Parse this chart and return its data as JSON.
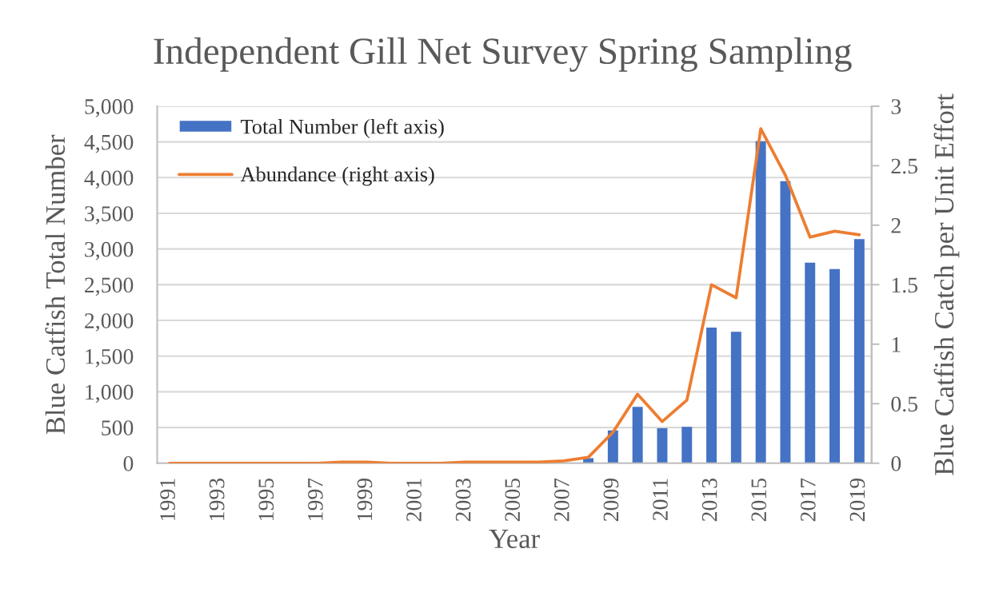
{
  "chart_data": {
    "type": "bar",
    "title": "Independent Gill Net Survey Spring Sampling",
    "xlabel": "Year",
    "ylabel": "Blue Catfish Total Number",
    "y2label": "Blue Catfish Catch per Unit Effort",
    "categories": [
      "1991",
      null,
      "1993",
      null,
      "1995",
      null,
      "1997",
      null,
      "1999",
      null,
      "2001",
      null,
      "2003",
      null,
      "2005",
      null,
      "2007",
      null,
      "2009",
      null,
      "2011",
      null,
      "2013",
      null,
      "2015",
      null,
      "2017",
      null,
      "2019"
    ],
    "series": [
      {
        "name": "Total Number (left axis)",
        "color": "#4472c4",
        "values": [
          null,
          null,
          null,
          null,
          null,
          null,
          null,
          null,
          null,
          null,
          null,
          null,
          null,
          null,
          null,
          null,
          null,
          70,
          460,
          790,
          490,
          510,
          1900,
          1840,
          4510,
          3950,
          2810,
          2720,
          3140
        ]
      },
      {
        "name": "Abundance (right axis)",
        "type": "line",
        "axis": "y2",
        "color": "#ed7d31",
        "line_style": "solid",
        "values": [
          0,
          0,
          0,
          0,
          0,
          0,
          0,
          0.01,
          0.01,
          0,
          0,
          0,
          0.01,
          0.01,
          0.01,
          0.01,
          0.02,
          0.05,
          0.26,
          0.58,
          0.35,
          0.53,
          1.5,
          1.39,
          2.81,
          2.42,
          1.9,
          1.95,
          1.92
        ]
      }
    ],
    "ylim": [
      0,
      5000
    ],
    "yticks": [
      0,
      500,
      {
        "value": 1000,
        "label": "1,000"
      },
      {
        "value": 1500,
        "label": "1,500"
      },
      {
        "value": 2000,
        "label": "2,000"
      },
      {
        "value": 2500,
        "label": "2,500"
      },
      {
        "value": 3000,
        "label": "3,000"
      },
      {
        "value": 3500,
        "label": "3,500"
      },
      {
        "value": 4000,
        "label": "4,000"
      },
      {
        "value": 4500,
        "label": "4,500"
      },
      {
        "value": 5000,
        "label": "5,000"
      }
    ],
    "y2lim": [
      0,
      3
    ],
    "y2ticks": [
      0,
      0.5,
      1,
      1.5,
      2,
      2.5,
      3
    ],
    "grid": "y",
    "legend": "top left"
  }
}
